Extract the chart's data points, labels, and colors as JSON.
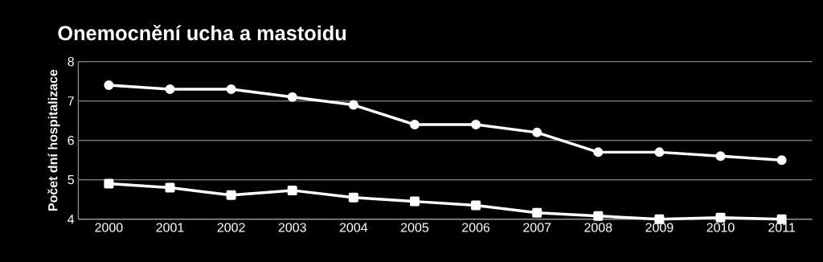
{
  "chart_data": {
    "type": "line",
    "title": "Onemocnění ucha a mastoidu",
    "ylabel": "Počet dní hospitalizace",
    "categories": [
      "2000",
      "2001",
      "2002",
      "2003",
      "2004",
      "2005",
      "2006",
      "2007",
      "2008",
      "2009",
      "2010",
      "2011"
    ],
    "series": [
      {
        "color": "#ffffff",
        "marker": "circle",
        "values": [
          7.4,
          7.3,
          7.3,
          7.1,
          6.9,
          6.4,
          6.4,
          6.2,
          5.7,
          5.7,
          5.6,
          5.5
        ]
      },
      {
        "color": "#ffffff",
        "marker": "square",
        "values": [
          4.9,
          4.8,
          4.61,
          4.73,
          4.55,
          4.45,
          4.35,
          4.16,
          4.08,
          4.0,
          4.04,
          4.0
        ]
      }
    ],
    "ylim": [
      4,
      8
    ],
    "yticks": [
      4,
      5,
      6,
      7,
      8
    ],
    "grid": "y",
    "line_style": "solid"
  }
}
